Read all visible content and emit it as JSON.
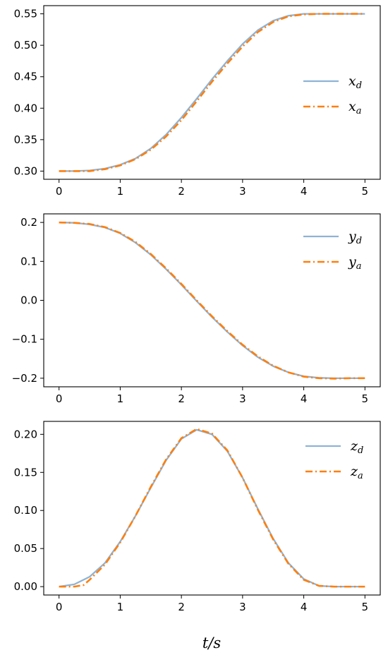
{
  "colors": {
    "desired": "#8fb3d5",
    "actual": "#ff7f0e",
    "axes": "#000000",
    "background": "#ffffff"
  },
  "xlabel": "t/s",
  "chart_data": [
    {
      "type": "line",
      "xlim": [
        -0.25,
        5.25
      ],
      "ylim": [
        0.287,
        0.563
      ],
      "xticks": [
        0,
        1,
        2,
        3,
        4,
        5
      ],
      "yticks": [
        0.3,
        0.35,
        0.4,
        0.45,
        0.5,
        0.55
      ],
      "ytick_labels": [
        "0.30",
        "0.35",
        "0.40",
        "0.45",
        "0.50",
        "0.55"
      ],
      "legend_position": "center-right",
      "series": [
        {
          "legend_base": "x",
          "legend_sub": "d",
          "style": "solid",
          "color_key": "desired",
          "x": [
            0,
            0.25,
            0.5,
            0.75,
            1.0,
            1.25,
            1.5,
            1.75,
            2.0,
            2.25,
            2.5,
            2.75,
            3.0,
            3.25,
            3.5,
            3.75,
            4.0,
            4.25,
            4.5,
            4.75,
            5.0
          ],
          "y": [
            0.3,
            0.3,
            0.301,
            0.304,
            0.31,
            0.32,
            0.336,
            0.358,
            0.385,
            0.415,
            0.446,
            0.475,
            0.502,
            0.524,
            0.539,
            0.547,
            0.55,
            0.55,
            0.55,
            0.55,
            0.55
          ]
        },
        {
          "legend_base": "x",
          "legend_sub": "a",
          "style": "dashdot",
          "color_key": "actual",
          "x": [
            0,
            0.25,
            0.5,
            0.75,
            1.0,
            1.25,
            1.5,
            1.75,
            2.0,
            2.25,
            2.5,
            2.75,
            3.0,
            3.25,
            3.5,
            3.75,
            4.0,
            4.25,
            4.5,
            4.75,
            5.0
          ],
          "y": [
            0.3,
            0.3,
            0.3,
            0.303,
            0.309,
            0.319,
            0.334,
            0.355,
            0.381,
            0.411,
            0.442,
            0.471,
            0.498,
            0.521,
            0.537,
            0.546,
            0.549,
            0.55,
            0.55,
            0.55,
            0.55
          ]
        }
      ]
    },
    {
      "type": "line",
      "xlim": [
        -0.25,
        5.25
      ],
      "ylim": [
        -0.222,
        0.222
      ],
      "xticks": [
        0,
        1,
        2,
        3,
        4,
        5
      ],
      "yticks": [
        -0.2,
        -0.1,
        0.0,
        0.1,
        0.2
      ],
      "ytick_labels": [
        "−0.2",
        "−0.1",
        "0.0",
        "0.1",
        "0.2"
      ],
      "legend_position": "top-right",
      "series": [
        {
          "legend_base": "y",
          "legend_sub": "d",
          "style": "solid",
          "color_key": "desired",
          "x": [
            0,
            0.25,
            0.5,
            0.75,
            1.0,
            1.25,
            1.5,
            1.75,
            2.0,
            2.25,
            2.5,
            2.75,
            3.0,
            3.25,
            3.5,
            3.75,
            4.0,
            4.25,
            4.5,
            4.75,
            5.0
          ],
          "y": [
            0.2,
            0.199,
            0.195,
            0.187,
            0.172,
            0.148,
            0.117,
            0.08,
            0.04,
            -0.002,
            -0.043,
            -0.081,
            -0.116,
            -0.146,
            -0.169,
            -0.185,
            -0.195,
            -0.199,
            -0.2,
            -0.2,
            -0.2
          ]
        },
        {
          "legend_base": "y",
          "legend_sub": "a",
          "style": "dashdot",
          "color_key": "actual",
          "x": [
            0,
            0.25,
            0.5,
            0.75,
            1.0,
            1.25,
            1.5,
            1.75,
            2.0,
            2.25,
            2.5,
            2.75,
            3.0,
            3.25,
            3.5,
            3.75,
            4.0,
            4.25,
            4.5,
            4.75,
            5.0
          ],
          "y": [
            0.2,
            0.199,
            0.196,
            0.188,
            0.173,
            0.15,
            0.119,
            0.082,
            0.042,
            0.0,
            -0.041,
            -0.079,
            -0.114,
            -0.144,
            -0.168,
            -0.185,
            -0.196,
            -0.2,
            -0.201,
            -0.2,
            -0.2
          ]
        }
      ]
    },
    {
      "type": "line",
      "xlim": [
        -0.25,
        5.25
      ],
      "ylim": [
        -0.011,
        0.217
      ],
      "xticks": [
        0,
        1,
        2,
        3,
        4,
        5
      ],
      "yticks": [
        0.0,
        0.05,
        0.1,
        0.15,
        0.2
      ],
      "ytick_labels": [
        "0.00",
        "0.05",
        "0.10",
        "0.15",
        "0.20"
      ],
      "legend_position": "top-right",
      "series": [
        {
          "legend_base": "z",
          "legend_sub": "d",
          "style": "solid",
          "color_key": "desired",
          "x": [
            0,
            0.25,
            0.5,
            0.75,
            1.0,
            1.25,
            1.5,
            1.75,
            2.0,
            2.25,
            2.5,
            2.75,
            3.0,
            3.25,
            3.5,
            3.75,
            4.0,
            4.25,
            4.5,
            4.75,
            5.0
          ],
          "y": [
            0.0,
            0.003,
            0.013,
            0.031,
            0.059,
            0.093,
            0.13,
            0.166,
            0.194,
            0.206,
            0.2,
            0.178,
            0.143,
            0.102,
            0.063,
            0.031,
            0.01,
            0.001,
            0.0,
            0.0,
            0.0
          ]
        },
        {
          "legend_base": "z",
          "legend_sub": "a",
          "style": "dashdot",
          "color_key": "actual",
          "x": [
            0,
            0.25,
            0.4,
            0.5,
            0.75,
            1.0,
            1.25,
            1.5,
            1.75,
            2.0,
            2.25,
            2.5,
            2.75,
            3.0,
            3.25,
            3.5,
            3.75,
            4.0,
            4.25,
            4.5,
            4.75,
            5.0
          ],
          "y": [
            0.0,
            0.0,
            0.002,
            0.009,
            0.029,
            0.058,
            0.093,
            0.131,
            0.167,
            0.195,
            0.207,
            0.201,
            0.179,
            0.143,
            0.101,
            0.062,
            0.03,
            0.009,
            0.001,
            0.0,
            0.0,
            0.0
          ]
        }
      ]
    }
  ]
}
